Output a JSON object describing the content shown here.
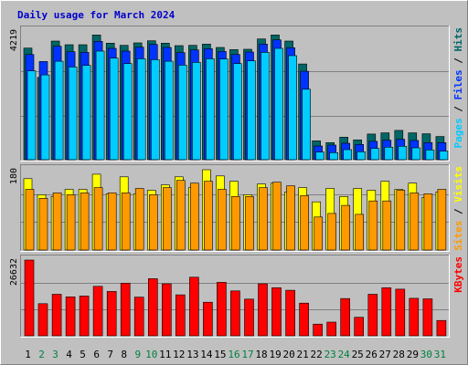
{
  "chart_data": {
    "type": "bar",
    "title": "Daily usage for March 2024",
    "categories": [
      "1",
      "2",
      "3",
      "4",
      "5",
      "6",
      "7",
      "8",
      "9",
      "10",
      "11",
      "12",
      "13",
      "14",
      "15",
      "16",
      "17",
      "18",
      "19",
      "20",
      "21",
      "22",
      "23",
      "24",
      "25",
      "26",
      "27",
      "28",
      "29",
      "30",
      "31"
    ],
    "weekend_days": [
      "2",
      "3",
      "9",
      "10",
      "16",
      "17",
      "23",
      "24",
      "30",
      "31"
    ],
    "panels": [
      {
        "id": "hits-files-pages",
        "ymax_label": "4219",
        "ylim": [
          0,
          4219
        ],
        "legend": [
          "Pages",
          "Files",
          "Hits"
        ],
        "series": [
          {
            "name": "Hits",
            "color": "#006666",
            "values": [
              3660,
              2700,
              3890,
              3770,
              3770,
              4090,
              3820,
              3750,
              3830,
              3900,
              3820,
              3740,
              3750,
              3790,
              3680,
              3610,
              3620,
              3960,
              4090,
              3890,
              3140,
              620,
              560,
              740,
              650,
              840,
              880,
              960,
              880,
              850,
              760
            ]
          },
          {
            "name": "Files",
            "color": "#0033ff",
            "values": [
              3450,
              3220,
              3720,
              3540,
              3520,
              3880,
              3650,
              3560,
              3690,
              3780,
              3680,
              3510,
              3600,
              3640,
              3550,
              3450,
              3530,
              3790,
              3930,
              3670,
              2900,
              450,
              480,
              540,
              500,
              600,
              640,
              670,
              630,
              560,
              560
            ]
          },
          {
            "name": "Pages",
            "color": "#00ccff",
            "values": [
              2910,
              2780,
              3230,
              3040,
              3090,
              3560,
              3330,
              3150,
              3310,
              3280,
              3230,
              3100,
              3190,
              3310,
              3300,
              3150,
              3240,
              3520,
              3650,
              3410,
              2310,
              250,
              230,
              330,
              260,
              370,
              410,
              440,
              390,
              320,
              280
            ]
          }
        ]
      },
      {
        "id": "visits-sites",
        "ymax_label": "180",
        "ylim": [
          0,
          180
        ],
        "legend": [
          "Sites",
          "Visits"
        ],
        "series": [
          {
            "name": "Visits",
            "color": "#ffff00",
            "values": [
              160,
              124,
              120,
              136,
              136,
              170,
              126,
              164,
              126,
              134,
              146,
              164,
              140,
              180,
              166,
              154,
              124,
              148,
              150,
              130,
              140,
              108,
              138,
              120,
              138,
              134,
              154,
              136,
              150,
              118,
              130
            ]
          },
          {
            "name": "Sites",
            "color": "#ff9900",
            "values": [
              136,
              116,
              128,
              124,
              128,
              140,
              128,
              128,
              138,
              124,
              140,
              156,
              150,
              154,
              136,
              120,
              120,
              140,
              152,
              144,
              122,
              74,
              82,
              100,
              80,
              110,
              110,
              134,
              128,
              126,
              136
            ]
          }
        ]
      },
      {
        "id": "kbytes",
        "ymax_label": "26632",
        "ylim": [
          0,
          26632
        ],
        "legend": [
          "KBytes"
        ],
        "series": [
          {
            "name": "KBytes",
            "color": "#ff0000",
            "values": [
              26632,
              11300,
              14600,
              13700,
              14000,
              17400,
              15600,
              18500,
              13600,
              20100,
              18300,
              14400,
              20600,
              11800,
              18800,
              15800,
              12900,
              18300,
              16900,
              16000,
              11500,
              4100,
              4800,
              13100,
              6500,
              14600,
              16900,
              16400,
              13200,
              13000,
              5400
            ]
          }
        ]
      }
    ],
    "legend_sep": " / ",
    "colors": {
      "background": "#c0c0c0",
      "panel_dark": "#808080",
      "panel_light": "#ffffff",
      "gridline": "#808080",
      "weekday_label": "#000000",
      "weekend_label": "#008040"
    }
  }
}
